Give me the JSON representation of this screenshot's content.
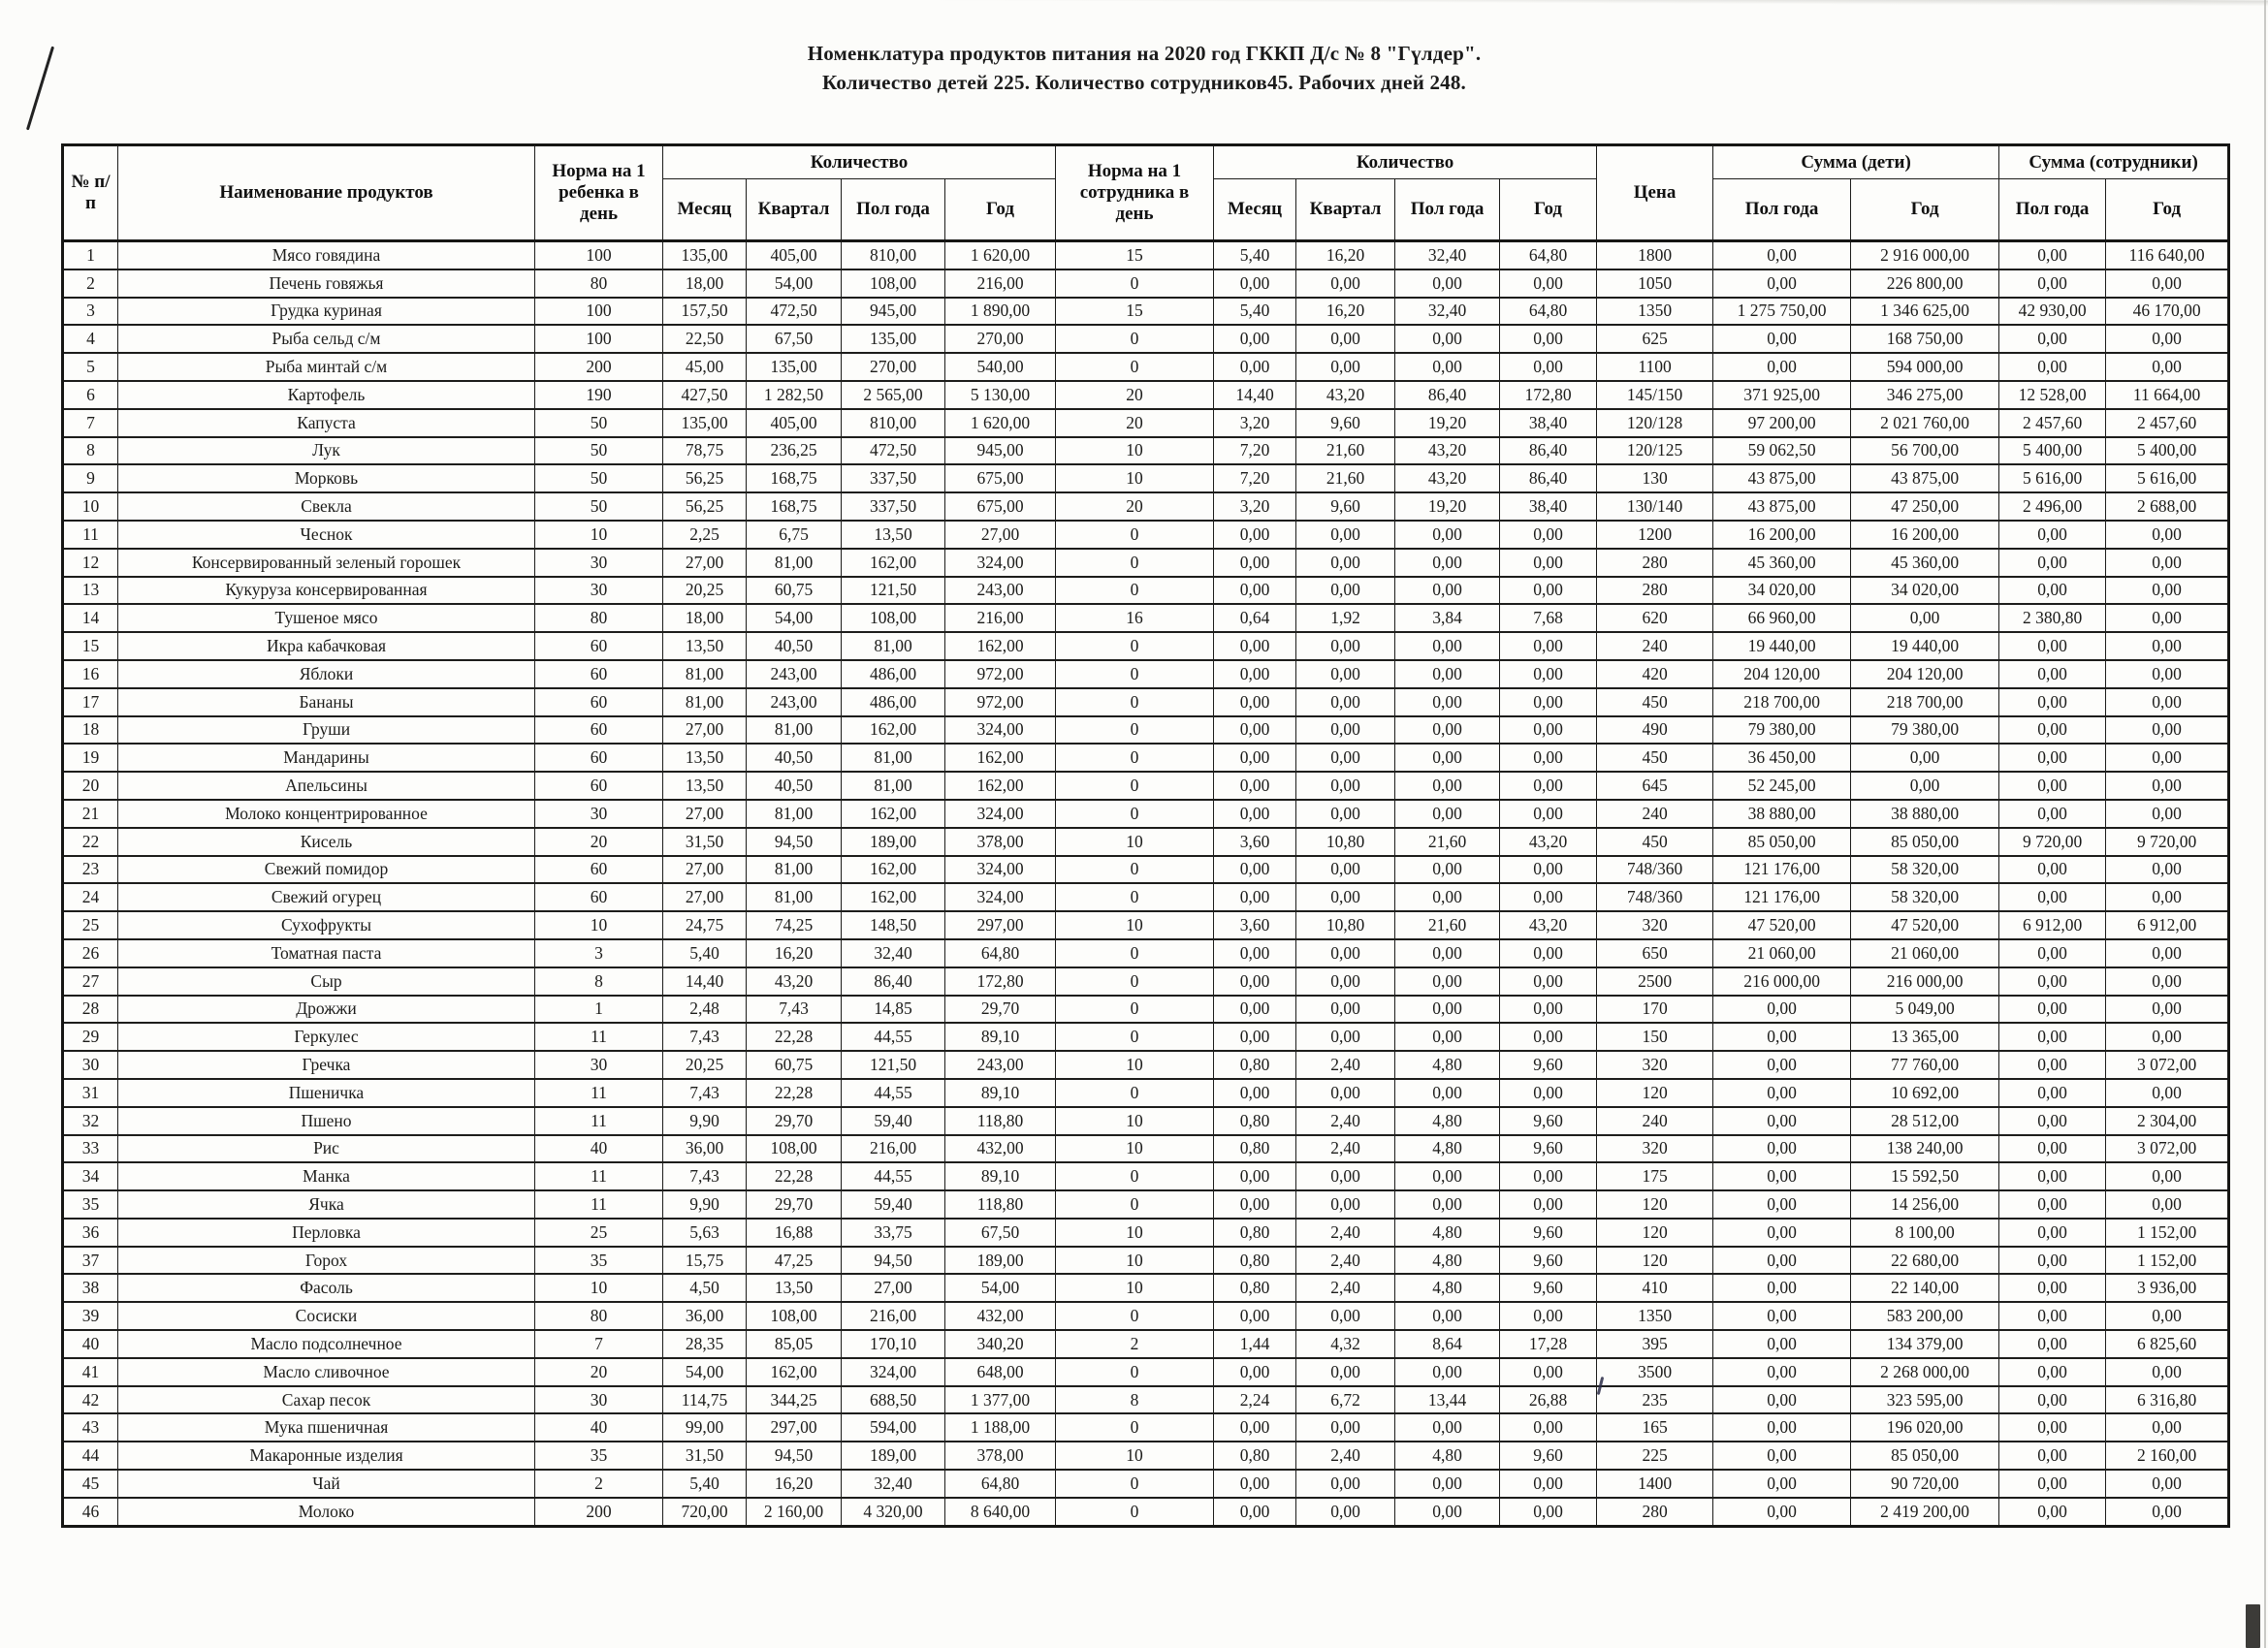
{
  "title_line1": "Номенклатура продуктов питания на 2020 год ГККП Д/с № 8 \"Гүлдер\".",
  "title_line2": "Количество детей 225. Количество сотрудников45. Рабочих дней 248.",
  "table": {
    "headers": {
      "num": "№ п/п",
      "name": "Наименование продуктов",
      "norm_child": "Норма на 1 ребенка в день",
      "qty": "Количество",
      "month": "Месяц",
      "quarter": "Квартал",
      "half_year": "Пол года",
      "year": "Год",
      "norm_staff": "Норма на 1 сотрудника в день",
      "price": "Цена",
      "sum_children": "Сумма (дети)",
      "sum_staff": "Сумма (сотрудники)"
    },
    "rows": [
      [
        "1",
        "Мясо говядина",
        "100",
        "135,00",
        "405,00",
        "810,00",
        "1 620,00",
        "15",
        "5,40",
        "16,20",
        "32,40",
        "64,80",
        "1800",
        "0,00",
        "2 916 000,00",
        "0,00",
        "116 640,00"
      ],
      [
        "2",
        "Печень говяжья",
        "80",
        "18,00",
        "54,00",
        "108,00",
        "216,00",
        "0",
        "0,00",
        "0,00",
        "0,00",
        "0,00",
        "1050",
        "0,00",
        "226 800,00",
        "0,00",
        "0,00"
      ],
      [
        "3",
        "Грудка куриная",
        "100",
        "157,50",
        "472,50",
        "945,00",
        "1 890,00",
        "15",
        "5,40",
        "16,20",
        "32,40",
        "64,80",
        "1350",
        "1 275 750,00",
        "1 346 625,00",
        "42 930,00",
        "46 170,00"
      ],
      [
        "4",
        "Рыба сельд с/м",
        "100",
        "22,50",
        "67,50",
        "135,00",
        "270,00",
        "0",
        "0,00",
        "0,00",
        "0,00",
        "0,00",
        "625",
        "0,00",
        "168 750,00",
        "0,00",
        "0,00"
      ],
      [
        "5",
        "Рыба минтай с/м",
        "200",
        "45,00",
        "135,00",
        "270,00",
        "540,00",
        "0",
        "0,00",
        "0,00",
        "0,00",
        "0,00",
        "1100",
        "0,00",
        "594 000,00",
        "0,00",
        "0,00"
      ],
      [
        "6",
        "Картофель",
        "190",
        "427,50",
        "1 282,50",
        "2 565,00",
        "5 130,00",
        "20",
        "14,40",
        "43,20",
        "86,40",
        "172,80",
        "145/150",
        "371 925,00",
        "346 275,00",
        "12 528,00",
        "11 664,00"
      ],
      [
        "7",
        "Капуста",
        "50",
        "135,00",
        "405,00",
        "810,00",
        "1 620,00",
        "20",
        "3,20",
        "9,60",
        "19,20",
        "38,40",
        "120/128",
        "97 200,00",
        "2 021 760,00",
        "2 457,60",
        "2 457,60"
      ],
      [
        "8",
        "Лук",
        "50",
        "78,75",
        "236,25",
        "472,50",
        "945,00",
        "10",
        "7,20",
        "21,60",
        "43,20",
        "86,40",
        "120/125",
        "59 062,50",
        "56 700,00",
        "5 400,00",
        "5 400,00"
      ],
      [
        "9",
        "Морковь",
        "50",
        "56,25",
        "168,75",
        "337,50",
        "675,00",
        "10",
        "7,20",
        "21,60",
        "43,20",
        "86,40",
        "130",
        "43 875,00",
        "43 875,00",
        "5 616,00",
        "5 616,00"
      ],
      [
        "10",
        "Свекла",
        "50",
        "56,25",
        "168,75",
        "337,50",
        "675,00",
        "20",
        "3,20",
        "9,60",
        "19,20",
        "38,40",
        "130/140",
        "43 875,00",
        "47 250,00",
        "2 496,00",
        "2 688,00"
      ],
      [
        "11",
        "Чеснок",
        "10",
        "2,25",
        "6,75",
        "13,50",
        "27,00",
        "0",
        "0,00",
        "0,00",
        "0,00",
        "0,00",
        "1200",
        "16 200,00",
        "16 200,00",
        "0,00",
        "0,00"
      ],
      [
        "12",
        "Консервированный зеленый горошек",
        "30",
        "27,00",
        "81,00",
        "162,00",
        "324,00",
        "0",
        "0,00",
        "0,00",
        "0,00",
        "0,00",
        "280",
        "45 360,00",
        "45 360,00",
        "0,00",
        "0,00"
      ],
      [
        "13",
        "Кукуруза консервированная",
        "30",
        "20,25",
        "60,75",
        "121,50",
        "243,00",
        "0",
        "0,00",
        "0,00",
        "0,00",
        "0,00",
        "280",
        "34 020,00",
        "34 020,00",
        "0,00",
        "0,00"
      ],
      [
        "14",
        "Тушеное мясо",
        "80",
        "18,00",
        "54,00",
        "108,00",
        "216,00",
        "16",
        "0,64",
        "1,92",
        "3,84",
        "7,68",
        "620",
        "66 960,00",
        "0,00",
        "2 380,80",
        "0,00"
      ],
      [
        "15",
        "Икра кабачковая",
        "60",
        "13,50",
        "40,50",
        "81,00",
        "162,00",
        "0",
        "0,00",
        "0,00",
        "0,00",
        "0,00",
        "240",
        "19 440,00",
        "19 440,00",
        "0,00",
        "0,00"
      ],
      [
        "16",
        "Яблоки",
        "60",
        "81,00",
        "243,00",
        "486,00",
        "972,00",
        "0",
        "0,00",
        "0,00",
        "0,00",
        "0,00",
        "420",
        "204 120,00",
        "204 120,00",
        "0,00",
        "0,00"
      ],
      [
        "17",
        "Бананы",
        "60",
        "81,00",
        "243,00",
        "486,00",
        "972,00",
        "0",
        "0,00",
        "0,00",
        "0,00",
        "0,00",
        "450",
        "218 700,00",
        "218 700,00",
        "0,00",
        "0,00"
      ],
      [
        "18",
        "Груши",
        "60",
        "27,00",
        "81,00",
        "162,00",
        "324,00",
        "0",
        "0,00",
        "0,00",
        "0,00",
        "0,00",
        "490",
        "79 380,00",
        "79 380,00",
        "0,00",
        "0,00"
      ],
      [
        "19",
        "Мандарины",
        "60",
        "13,50",
        "40,50",
        "81,00",
        "162,00",
        "0",
        "0,00",
        "0,00",
        "0,00",
        "0,00",
        "450",
        "36 450,00",
        "0,00",
        "0,00",
        "0,00"
      ],
      [
        "20",
        "Апельсины",
        "60",
        "13,50",
        "40,50",
        "81,00",
        "162,00",
        "0",
        "0,00",
        "0,00",
        "0,00",
        "0,00",
        "645",
        "52 245,00",
        "0,00",
        "0,00",
        "0,00"
      ],
      [
        "21",
        "Молоко концентрированное",
        "30",
        "27,00",
        "81,00",
        "162,00",
        "324,00",
        "0",
        "0,00",
        "0,00",
        "0,00",
        "0,00",
        "240",
        "38 880,00",
        "38 880,00",
        "0,00",
        "0,00"
      ],
      [
        "22",
        "Кисель",
        "20",
        "31,50",
        "94,50",
        "189,00",
        "378,00",
        "10",
        "3,60",
        "10,80",
        "21,60",
        "43,20",
        "450",
        "85 050,00",
        "85 050,00",
        "9 720,00",
        "9 720,00"
      ],
      [
        "23",
        "Свежий помидор",
        "60",
        "27,00",
        "81,00",
        "162,00",
        "324,00",
        "0",
        "0,00",
        "0,00",
        "0,00",
        "0,00",
        "748/360",
        "121 176,00",
        "58 320,00",
        "0,00",
        "0,00"
      ],
      [
        "24",
        "Свежий огурец",
        "60",
        "27,00",
        "81,00",
        "162,00",
        "324,00",
        "0",
        "0,00",
        "0,00",
        "0,00",
        "0,00",
        "748/360",
        "121 176,00",
        "58 320,00",
        "0,00",
        "0,00"
      ],
      [
        "25",
        "Сухофрукты",
        "10",
        "24,75",
        "74,25",
        "148,50",
        "297,00",
        "10",
        "3,60",
        "10,80",
        "21,60",
        "43,20",
        "320",
        "47 520,00",
        "47 520,00",
        "6 912,00",
        "6 912,00"
      ],
      [
        "26",
        "Томатная паста",
        "3",
        "5,40",
        "16,20",
        "32,40",
        "64,80",
        "0",
        "0,00",
        "0,00",
        "0,00",
        "0,00",
        "650",
        "21 060,00",
        "21 060,00",
        "0,00",
        "0,00"
      ],
      [
        "27",
        "Сыр",
        "8",
        "14,40",
        "43,20",
        "86,40",
        "172,80",
        "0",
        "0,00",
        "0,00",
        "0,00",
        "0,00",
        "2500",
        "216 000,00",
        "216 000,00",
        "0,00",
        "0,00"
      ],
      [
        "28",
        "Дрожжи",
        "1",
        "2,48",
        "7,43",
        "14,85",
        "29,70",
        "0",
        "0,00",
        "0,00",
        "0,00",
        "0,00",
        "170",
        "0,00",
        "5 049,00",
        "0,00",
        "0,00"
      ],
      [
        "29",
        "Геркулес",
        "11",
        "7,43",
        "22,28",
        "44,55",
        "89,10",
        "0",
        "0,00",
        "0,00",
        "0,00",
        "0,00",
        "150",
        "0,00",
        "13 365,00",
        "0,00",
        "0,00"
      ],
      [
        "30",
        "Гречка",
        "30",
        "20,25",
        "60,75",
        "121,50",
        "243,00",
        "10",
        "0,80",
        "2,40",
        "4,80",
        "9,60",
        "320",
        "0,00",
        "77 760,00",
        "0,00",
        "3 072,00"
      ],
      [
        "31",
        "Пшеничка",
        "11",
        "7,43",
        "22,28",
        "44,55",
        "89,10",
        "0",
        "0,00",
        "0,00",
        "0,00",
        "0,00",
        "120",
        "0,00",
        "10 692,00",
        "0,00",
        "0,00"
      ],
      [
        "32",
        "Пшено",
        "11",
        "9,90",
        "29,70",
        "59,40",
        "118,80",
        "10",
        "0,80",
        "2,40",
        "4,80",
        "9,60",
        "240",
        "0,00",
        "28 512,00",
        "0,00",
        "2 304,00"
      ],
      [
        "33",
        "Рис",
        "40",
        "36,00",
        "108,00",
        "216,00",
        "432,00",
        "10",
        "0,80",
        "2,40",
        "4,80",
        "9,60",
        "320",
        "0,00",
        "138 240,00",
        "0,00",
        "3 072,00"
      ],
      [
        "34",
        "Манка",
        "11",
        "7,43",
        "22,28",
        "44,55",
        "89,10",
        "0",
        "0,00",
        "0,00",
        "0,00",
        "0,00",
        "175",
        "0,00",
        "15 592,50",
        "0,00",
        "0,00"
      ],
      [
        "35",
        "Ячка",
        "11",
        "9,90",
        "29,70",
        "59,40",
        "118,80",
        "0",
        "0,00",
        "0,00",
        "0,00",
        "0,00",
        "120",
        "0,00",
        "14 256,00",
        "0,00",
        "0,00"
      ],
      [
        "36",
        "Перловка",
        "25",
        "5,63",
        "16,88",
        "33,75",
        "67,50",
        "10",
        "0,80",
        "2,40",
        "4,80",
        "9,60",
        "120",
        "0,00",
        "8 100,00",
        "0,00",
        "1 152,00"
      ],
      [
        "37",
        "Горох",
        "35",
        "15,75",
        "47,25",
        "94,50",
        "189,00",
        "10",
        "0,80",
        "2,40",
        "4,80",
        "9,60",
        "120",
        "0,00",
        "22 680,00",
        "0,00",
        "1 152,00"
      ],
      [
        "38",
        "Фасоль",
        "10",
        "4,50",
        "13,50",
        "27,00",
        "54,00",
        "10",
        "0,80",
        "2,40",
        "4,80",
        "9,60",
        "410",
        "0,00",
        "22 140,00",
        "0,00",
        "3 936,00"
      ],
      [
        "39",
        "Сосиски",
        "80",
        "36,00",
        "108,00",
        "216,00",
        "432,00",
        "0",
        "0,00",
        "0,00",
        "0,00",
        "0,00",
        "1350",
        "0,00",
        "583 200,00",
        "0,00",
        "0,00"
      ],
      [
        "40",
        "Масло подсолнечное",
        "7",
        "28,35",
        "85,05",
        "170,10",
        "340,20",
        "2",
        "1,44",
        "4,32",
        "8,64",
        "17,28",
        "395",
        "0,00",
        "134 379,00",
        "0,00",
        "6 825,60"
      ],
      [
        "41",
        "Масло сливочное",
        "20",
        "54,00",
        "162,00",
        "324,00",
        "648,00",
        "0",
        "0,00",
        "0,00",
        "0,00",
        "0,00",
        "3500",
        "0,00",
        "2 268 000,00",
        "0,00",
        "0,00"
      ],
      [
        "42",
        "Сахар песок",
        "30",
        "114,75",
        "344,25",
        "688,50",
        "1 377,00",
        "8",
        "2,24",
        "6,72",
        "13,44",
        "26,88",
        "235",
        "0,00",
        "323 595,00",
        "0,00",
        "6 316,80"
      ],
      [
        "43",
        "Мука пшеничная",
        "40",
        "99,00",
        "297,00",
        "594,00",
        "1 188,00",
        "0",
        "0,00",
        "0,00",
        "0,00",
        "0,00",
        "165",
        "0,00",
        "196 020,00",
        "0,00",
        "0,00"
      ],
      [
        "44",
        "Макаронные изделия",
        "35",
        "31,50",
        "94,50",
        "189,00",
        "378,00",
        "10",
        "0,80",
        "2,40",
        "4,80",
        "9,60",
        "225",
        "0,00",
        "85 050,00",
        "0,00",
        "2 160,00"
      ],
      [
        "45",
        "Чай",
        "2",
        "5,40",
        "16,20",
        "32,40",
        "64,80",
        "0",
        "0,00",
        "0,00",
        "0,00",
        "0,00",
        "1400",
        "0,00",
        "90 720,00",
        "0,00",
        "0,00"
      ],
      [
        "46",
        "Молоко",
        "200",
        "720,00",
        "2 160,00",
        "4 320,00",
        "8 640,00",
        "0",
        "0,00",
        "0,00",
        "0,00",
        "0,00",
        "280",
        "0,00",
        "2 419 200,00",
        "0,00",
        "0,00"
      ]
    ]
  }
}
